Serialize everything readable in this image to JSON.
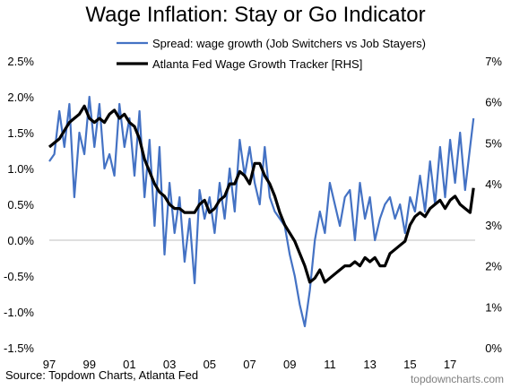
{
  "title": "Wage Inflation: Stay or Go Indicator",
  "source": "Source: Topdown Charts, Atlanta Fed",
  "watermark": "topdowncharts.com",
  "chart_data": {
    "type": "line",
    "title": "Wage Inflation: Stay or Go Indicator",
    "xlim": [
      1997,
      2018.25
    ],
    "x_tick_values": [
      1997,
      1999,
      2001,
      2003,
      2005,
      2007,
      2009,
      2011,
      2013,
      2015,
      2017
    ],
    "x_tick_labels": [
      "97",
      "99",
      "01",
      "03",
      "05",
      "07",
      "09",
      "11",
      "13",
      "15",
      "17"
    ],
    "y_left": {
      "lim": [
        -1.5,
        2.5
      ],
      "ticks": [
        -1.5,
        -1.0,
        -0.5,
        0.0,
        0.5,
        1.0,
        1.5,
        2.0,
        2.5
      ],
      "tick_labels": [
        "-1.5%",
        "-1.0%",
        "-0.5%",
        "0.0%",
        "0.5%",
        "1.0%",
        "1.5%",
        "2.0%",
        "2.5%"
      ]
    },
    "y_right": {
      "lim": [
        0,
        7
      ],
      "ticks": [
        0,
        1,
        2,
        3,
        4,
        5,
        6,
        7
      ],
      "tick_labels": [
        "0%",
        "1%",
        "2%",
        "3%",
        "4%",
        "5%",
        "6%",
        "7%"
      ]
    },
    "grid": false,
    "legend_position": "top",
    "series": [
      {
        "name": "Spread: wage growth (Job Switchers vs Job Stayers)",
        "axis": "left",
        "color": "#4472c4",
        "x": [
          1997.0,
          1997.25,
          1997.5,
          1997.75,
          1998.0,
          1998.25,
          1998.5,
          1998.75,
          1999.0,
          1999.25,
          1999.5,
          1999.75,
          2000.0,
          2000.25,
          2000.5,
          2000.75,
          2001.0,
          2001.25,
          2001.5,
          2001.75,
          2002.0,
          2002.25,
          2002.5,
          2002.75,
          2003.0,
          2003.25,
          2003.5,
          2003.75,
          2004.0,
          2004.25,
          2004.5,
          2004.75,
          2005.0,
          2005.25,
          2005.5,
          2005.75,
          2006.0,
          2006.25,
          2006.5,
          2006.75,
          2007.0,
          2007.25,
          2007.5,
          2007.75,
          2008.0,
          2008.25,
          2008.5,
          2008.75,
          2009.0,
          2009.25,
          2009.5,
          2009.75,
          2010.0,
          2010.25,
          2010.5,
          2010.75,
          2011.0,
          2011.25,
          2011.5,
          2011.75,
          2012.0,
          2012.25,
          2012.5,
          2012.75,
          2013.0,
          2013.25,
          2013.5,
          2013.75,
          2014.0,
          2014.25,
          2014.5,
          2014.75,
          2015.0,
          2015.25,
          2015.5,
          2015.75,
          2016.0,
          2016.25,
          2016.5,
          2016.75,
          2017.0,
          2017.25,
          2017.5,
          2017.75,
          2018.0,
          2018.17
        ],
        "y": [
          1.1,
          1.2,
          1.8,
          1.3,
          1.9,
          0.6,
          1.5,
          1.2,
          2.0,
          1.3,
          1.9,
          1.0,
          1.2,
          0.9,
          1.9,
          1.3,
          1.7,
          0.9,
          1.8,
          0.6,
          1.4,
          0.2,
          1.3,
          -0.2,
          0.8,
          0.1,
          0.6,
          -0.3,
          0.3,
          -0.6,
          0.7,
          0.3,
          0.6,
          0.1,
          0.8,
          0.3,
          1.0,
          0.4,
          1.4,
          0.9,
          1.3,
          0.8,
          0.5,
          1.3,
          0.6,
          0.4,
          0.3,
          0.2,
          -0.2,
          -0.5,
          -0.9,
          -1.2,
          -0.7,
          0.0,
          0.4,
          0.1,
          0.8,
          0.5,
          0.2,
          0.6,
          0.7,
          0.0,
          0.8,
          0.3,
          0.6,
          0.0,
          0.3,
          0.5,
          0.6,
          0.3,
          0.5,
          0.1,
          0.6,
          0.4,
          0.9,
          0.4,
          1.1,
          0.5,
          1.3,
          0.6,
          1.4,
          0.8,
          1.5,
          0.7,
          1.3,
          1.7
        ]
      },
      {
        "name": "Atlanta Fed Wage Growth Tracker [RHS]",
        "axis": "right",
        "color": "#000000",
        "x": [
          1997.0,
          1997.25,
          1997.5,
          1997.75,
          1998.0,
          1998.25,
          1998.5,
          1998.75,
          1999.0,
          1999.25,
          1999.5,
          1999.75,
          2000.0,
          2000.25,
          2000.5,
          2000.75,
          2001.0,
          2001.25,
          2001.5,
          2001.75,
          2002.0,
          2002.25,
          2002.5,
          2002.75,
          2003.0,
          2003.25,
          2003.5,
          2003.75,
          2004.0,
          2004.25,
          2004.5,
          2004.75,
          2005.0,
          2005.25,
          2005.5,
          2005.75,
          2006.0,
          2006.25,
          2006.5,
          2006.75,
          2007.0,
          2007.25,
          2007.5,
          2007.75,
          2008.0,
          2008.25,
          2008.5,
          2008.75,
          2009.0,
          2009.25,
          2009.5,
          2009.75,
          2010.0,
          2010.25,
          2010.5,
          2010.75,
          2011.0,
          2011.25,
          2011.5,
          2011.75,
          2012.0,
          2012.25,
          2012.5,
          2012.75,
          2013.0,
          2013.25,
          2013.5,
          2013.75,
          2014.0,
          2014.25,
          2014.5,
          2014.75,
          2015.0,
          2015.25,
          2015.5,
          2015.75,
          2016.0,
          2016.25,
          2016.5,
          2016.75,
          2017.0,
          2017.25,
          2017.5,
          2017.75,
          2018.0,
          2018.17
        ],
        "y": [
          4.9,
          5.0,
          5.1,
          5.3,
          5.5,
          5.6,
          5.7,
          5.9,
          5.6,
          5.5,
          5.6,
          5.5,
          5.7,
          5.8,
          5.6,
          5.7,
          5.5,
          5.4,
          5.1,
          4.6,
          4.3,
          4.0,
          3.8,
          3.7,
          3.5,
          3.4,
          3.4,
          3.3,
          3.3,
          3.3,
          3.5,
          3.6,
          3.3,
          3.4,
          3.6,
          3.7,
          4.0,
          4.0,
          4.3,
          4.2,
          4.0,
          4.5,
          4.5,
          4.2,
          4.0,
          3.7,
          3.3,
          3.0,
          2.8,
          2.6,
          2.3,
          2.0,
          1.6,
          1.7,
          1.9,
          1.6,
          1.7,
          1.8,
          1.9,
          2.0,
          2.0,
          2.1,
          2.0,
          2.2,
          2.1,
          2.2,
          2.0,
          2.0,
          2.3,
          2.4,
          2.5,
          2.6,
          3.0,
          3.2,
          3.3,
          3.2,
          3.4,
          3.5,
          3.6,
          3.4,
          3.6,
          3.7,
          3.5,
          3.4,
          3.3,
          3.9
        ]
      }
    ]
  }
}
